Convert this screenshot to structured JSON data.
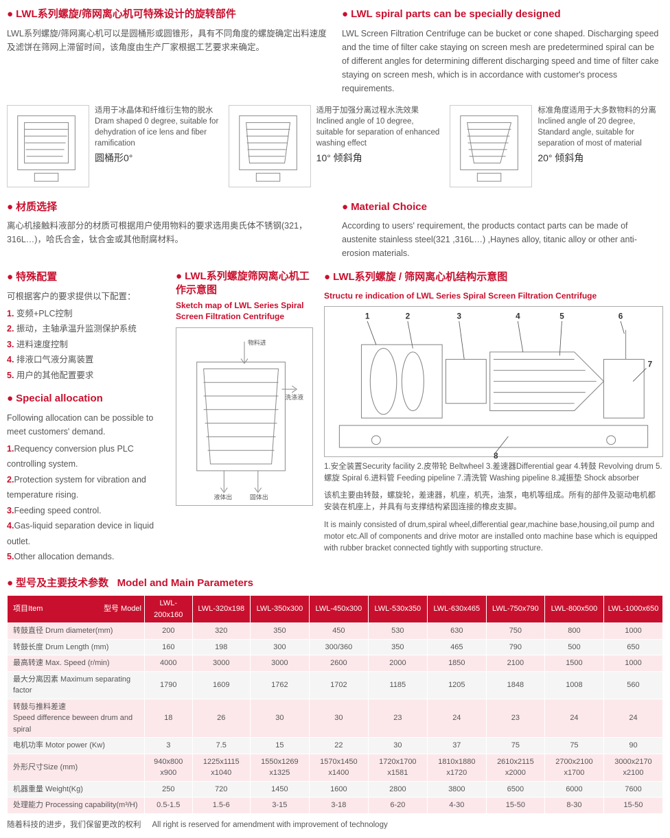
{
  "header_cn": {
    "title": "LWL系列螺旋/筛网离心机可特殊设计的旋转部件",
    "body": "LWL系列螺旋/筛网离心机可以是圆桶形或圆锥形，具有不同角度的螺旋确定出料速度及滤饼在筛网上滞留时间，该角度由生产厂家根据工艺要求来确定。"
  },
  "header_en": {
    "title": "LWL spiral parts can be specially designed",
    "body": "LWL Screen Filtration Centrifuge can be bucket or cone shaped. Discharging speed and the time of filter cake staying on screen mesh are predetermined spiral can be of different angles for determining different discharging speed and time of filter cake staying on screen mesh, which is in accordance with customer's process requirements."
  },
  "diagrams": [
    {
      "cn": "适用于冰晶体和纤维衍生物的脱水",
      "en": "Dram shaped 0 degree, suitable for dehydration of ice lens and fiber ramification",
      "angle": "圆桶形0°"
    },
    {
      "cn": "适用于加强分离过程水洗效果",
      "en": "Inclined angle of 10 degree, suitable for separation of enhanced washing effect",
      "angle": "10° 倾斜角"
    },
    {
      "cn": "标准角度适用于大多数物料的分离",
      "en": "Inclined angle of 20 degree, Standard angle, suitable for separation of most of material",
      "angle": "20° 倾斜角"
    }
  ],
  "material_cn": {
    "title": "材质选择",
    "body": "离心机接触料液部分的材质可根据用户使用物料的要求选用奥氏体不锈钢(321，316L…)，哈氏合金，钛合金或其他耐腐材料。"
  },
  "material_en": {
    "title": "Material Choice",
    "body": "According to users' requirement, the products contact parts can be made of austenite stainless steel(321 ,316L…) ,Haynes alloy, titanic alloy or other anti-erosion materials."
  },
  "special_config_cn": {
    "title": "特殊配置",
    "intro": "可根据客户的要求提供以下配置：",
    "items": [
      "变频+PLC控制",
      "振动，主轴承温升监测保护系统",
      "进料速度控制",
      "排液口气液分离装置",
      "用户的其他配置要求"
    ]
  },
  "special_config_en": {
    "title": "Special allocation",
    "intro": "Following allocation can be possible to meet customers' demand.",
    "items": [
      "Requency conversion plus PLC controlling system.",
      "Protection system for vibration and temperature rising.",
      "Feeding speed control.",
      "Gas-liquid separation device in liquid outlet.",
      "Other allocation demands."
    ]
  },
  "sketch": {
    "title_cn": "LWL系列螺旋筛网离心机工作示意图",
    "title_en": "Sketch map of LWL Series Spiral Screen Filtration Centrifuge",
    "labels": {
      "in": "物料进",
      "wash": "洗涤液",
      "liq": "液体出",
      "solid": "固体出"
    }
  },
  "structure": {
    "title_cn": "LWL系列螺旋 / 筛网离心机结构示意图",
    "title_en": "Structu re indication of LWL Series Spiral Screen Filtration Centrifuge",
    "legend": "1.安全装置Security facility  2.皮带轮 Beltwheel  3.差速器Differential gear 4.转鼓 Revolving drum  5.螺旋 Spiral  6.进料管 Feeding pipeline 7.清洗管 Washing pipeline  8.减振垫 Shock absorber",
    "desc_cn": "该机主要由转鼓，螺旋轮，差速器，机座，机壳，油泵，电机等组成。所有的部件及驱动电机都安装在机座上，并具有与支撑结构紧固连接的橡皮支脚。",
    "desc_en": "It is mainly consisted of drum,spiral wheel,differential gear,machine base,housing,oil pump and motor etc.All of components and drive motor are installed onto machine base which is equipped with rubber bracket connected tightly with supporting structure."
  },
  "table": {
    "title_cn": "型号及主要技术参数",
    "title_en": "Model and Main Parameters",
    "item_header": "项目Item",
    "model_header": "型号 Model",
    "models": [
      "LWL-200x160",
      "LWL-320x198",
      "LWL-350x300",
      "LWL-450x300",
      "LWL-530x350",
      "LWL-630x465",
      "LWL-750x790",
      "LWL-800x500",
      "LWL-1000x650"
    ],
    "rows": [
      {
        "label": "转鼓直径 Drum diameter(mm)",
        "vals": [
          "200",
          "320",
          "350",
          "450",
          "530",
          "630",
          "750",
          "800",
          "1000"
        ]
      },
      {
        "label": "转鼓长度 Drum Length (mm)",
        "vals": [
          "160",
          "198",
          "300",
          "300/360",
          "350",
          "465",
          "790",
          "500",
          "650"
        ]
      },
      {
        "label": "最高转速 Max. Speed (r/min)",
        "vals": [
          "4000",
          "3000",
          "3000",
          "2600",
          "2000",
          "1850",
          "2100",
          "1500",
          "1000"
        ]
      },
      {
        "label": "最大分离因素 Maximum separating factor",
        "vals": [
          "1790",
          "1609",
          "1762",
          "1702",
          "1185",
          "1205",
          "1848",
          "1008",
          "560"
        ]
      },
      {
        "label": "转鼓与推料差速\nSpeed difference beween drum and spiral",
        "vals": [
          "18",
          "26",
          "30",
          "30",
          "23",
          "24",
          "23",
          "24",
          "24"
        ]
      },
      {
        "label": "电机功率 Motor power (Kw)",
        "vals": [
          "3",
          "7.5",
          "15",
          "22",
          "30",
          "37",
          "75",
          "75",
          "90"
        ]
      },
      {
        "label": "外形尺寸Size (mm)",
        "vals": [
          "940x800 x900",
          "1225x1115 x1040",
          "1550x1269 x1325",
          "1570x1450 x1400",
          "1720x1700 x1581",
          "1810x1880 x1720",
          "2610x2115 x2000",
          "2700x2100 x1700",
          "3000x2170 x2100"
        ]
      },
      {
        "label": "机器重量 Weight(Kg)",
        "vals": [
          "250",
          "720",
          "1450",
          "1600",
          "2800",
          "3800",
          "6500",
          "6000",
          "7600"
        ]
      },
      {
        "label": "处理能力 Processing capability(m³/H)",
        "vals": [
          "0.5-1.5",
          "1.5-6",
          "3-15",
          "3-18",
          "6-20",
          "4-30",
          "15-50",
          "8-30",
          "15-50"
        ]
      }
    ]
  },
  "footer": {
    "cn": "随着科技的进步，我们保留更改的权利",
    "en": "All right is reserved for amendment with improvement of technology"
  },
  "colors": {
    "brand_red": "#c8102e",
    "row_odd": "#fce8eb",
    "row_even": "#f5f5f5",
    "text": "#555555"
  }
}
